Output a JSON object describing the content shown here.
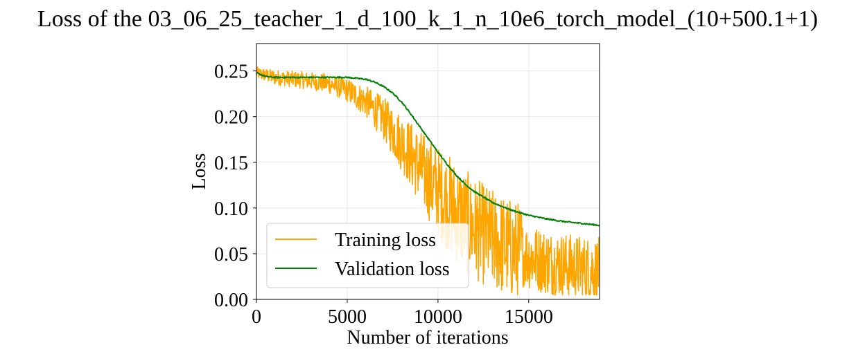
{
  "chart_data": {
    "type": "line",
    "title": "Loss of the 03_06_25_teacher_1_d_100_k_1_n_10e6_torch_model_(10+500.1+1)",
    "xlabel": "Number of iterations",
    "ylabel": "Loss",
    "xlim": [
      0,
      18900
    ],
    "ylim": [
      0.0,
      0.28
    ],
    "xticks": [
      0,
      5000,
      10000,
      15000
    ],
    "xtick_labels": [
      "0",
      "5000",
      "10000",
      "15000"
    ],
    "yticks": [
      0.0,
      0.05,
      0.1,
      0.15,
      0.2,
      0.25
    ],
    "ytick_labels": [
      "0.00",
      "0.05",
      "0.10",
      "0.15",
      "0.20",
      "0.25"
    ],
    "grid": true,
    "legend_position": "lower-left",
    "series": [
      {
        "name": "Training loss",
        "color": "#FFA500",
        "noisy": true,
        "x": [
          0,
          1000,
          2000,
          3000,
          4000,
          5000,
          6000,
          7000,
          8000,
          9000,
          10000,
          11000,
          12000,
          13000,
          14000,
          15000,
          16000,
          17000,
          18000,
          18900
        ],
        "y": [
          0.248,
          0.243,
          0.241,
          0.239,
          0.236,
          0.229,
          0.217,
          0.198,
          0.172,
          0.145,
          0.118,
          0.095,
          0.078,
          0.065,
          0.055,
          0.047,
          0.041,
          0.037,
          0.034,
          0.032
        ]
      },
      {
        "name": "Validation loss",
        "color": "#008000",
        "noisy": false,
        "x": [
          0,
          500,
          1000,
          2000,
          3000,
          4000,
          5000,
          6000,
          6500,
          7000,
          7500,
          8000,
          8500,
          9000,
          9500,
          10000,
          10500,
          11000,
          11500,
          12000,
          13000,
          14000,
          15000,
          16000,
          17000,
          18000,
          18900
        ],
        "y": [
          0.248,
          0.244,
          0.243,
          0.243,
          0.243,
          0.243,
          0.243,
          0.241,
          0.238,
          0.233,
          0.226,
          0.216,
          0.203,
          0.189,
          0.175,
          0.161,
          0.148,
          0.136,
          0.126,
          0.118,
          0.106,
          0.098,
          0.092,
          0.088,
          0.085,
          0.083,
          0.081
        ]
      }
    ]
  }
}
